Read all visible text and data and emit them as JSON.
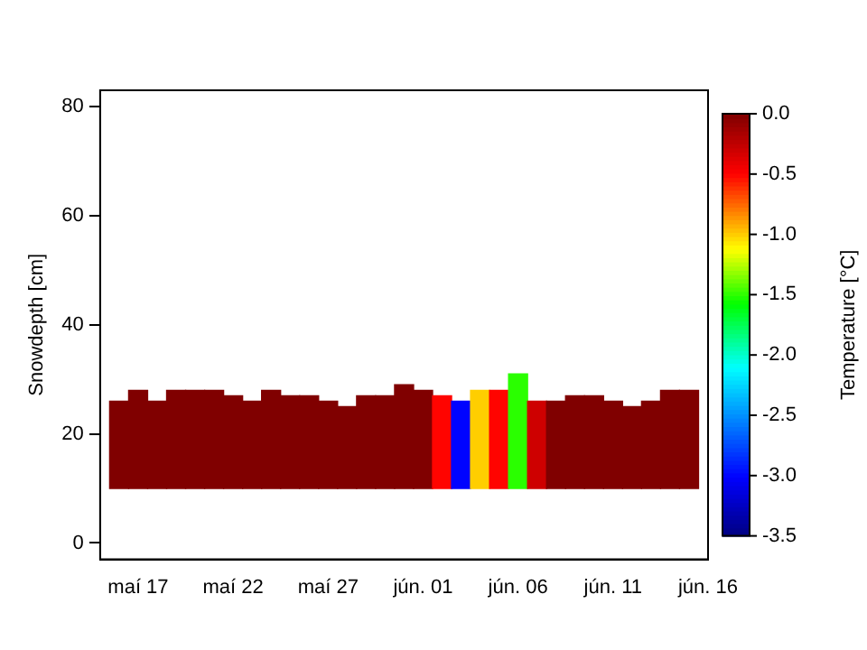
{
  "chart_data": {
    "type": "bar",
    "ylabel": "Snowdepth [cm]",
    "clabel": "Temperature [°C]",
    "x": [
      "--05-16",
      "--05-17",
      "--05-18",
      "--05-19",
      "--05-20",
      "--05-21",
      "--05-22",
      "--05-23",
      "--05-24",
      "--05-25",
      "--05-26",
      "--05-27",
      "--05-28",
      "--05-29",
      "--05-30",
      "--05-31",
      "--06-01",
      "--06-02",
      "--06-03",
      "--06-04",
      "--06-05",
      "--06-06",
      "--06-07",
      "--06-08",
      "--06-09",
      "--06-10",
      "--06-11",
      "--06-12",
      "--06-13",
      "--06-14",
      "--06-15"
    ],
    "base": [
      10,
      10,
      10,
      10,
      10,
      10,
      10,
      10,
      10,
      10,
      10,
      10,
      10,
      10,
      10,
      10,
      10,
      10,
      10,
      10,
      10,
      10,
      10,
      10,
      10,
      10,
      10,
      10,
      10,
      10,
      10
    ],
    "values": [
      16,
      18,
      16,
      18,
      18,
      18,
      17,
      16,
      18,
      17,
      17,
      16,
      15,
      17,
      17,
      19,
      18,
      17,
      16,
      18,
      18,
      21,
      16,
      16,
      17,
      17,
      16,
      15,
      16,
      18,
      18
    ],
    "cvalues": [
      0,
      0,
      0,
      0,
      0,
      0,
      0,
      0,
      0,
      0,
      0,
      0,
      0,
      0,
      0,
      0,
      0,
      -0.5,
      -3.0,
      -1.0,
      -0.5,
      -1.5,
      -0.3,
      0,
      0,
      0,
      0,
      0,
      0,
      0,
      0
    ],
    "clim": [
      -3.5,
      0
    ],
    "cticks": [
      {
        "value": 0,
        "label": "0.0"
      },
      -0.5,
      {
        "value": -1,
        "label": "-1.0"
      },
      -1.5,
      {
        "value": -2,
        "label": "-2.0"
      },
      -2.5,
      {
        "value": -3,
        "label": "-3.0"
      },
      -3.5
    ],
    "xlim": [
      "--05-15",
      "--06-16"
    ],
    "xticks": [
      {
        "value": "--05-17",
        "label": "maí 17"
      },
      {
        "value": "--05-22",
        "label": "maí 22"
      },
      {
        "value": "--05-27",
        "label": "maí 27"
      },
      {
        "value": "--06-01",
        "label": "jún. 01"
      },
      {
        "value": "--06-06",
        "label": "jún. 06"
      },
      {
        "value": "--06-11",
        "label": "jún. 11"
      },
      {
        "value": "--06-16",
        "label": "jún. 16"
      }
    ],
    "ylim": [
      -3,
      83
    ],
    "yticks": [
      0,
      20,
      40,
      60,
      80
    ],
    "grid": false,
    "legend": false
  }
}
